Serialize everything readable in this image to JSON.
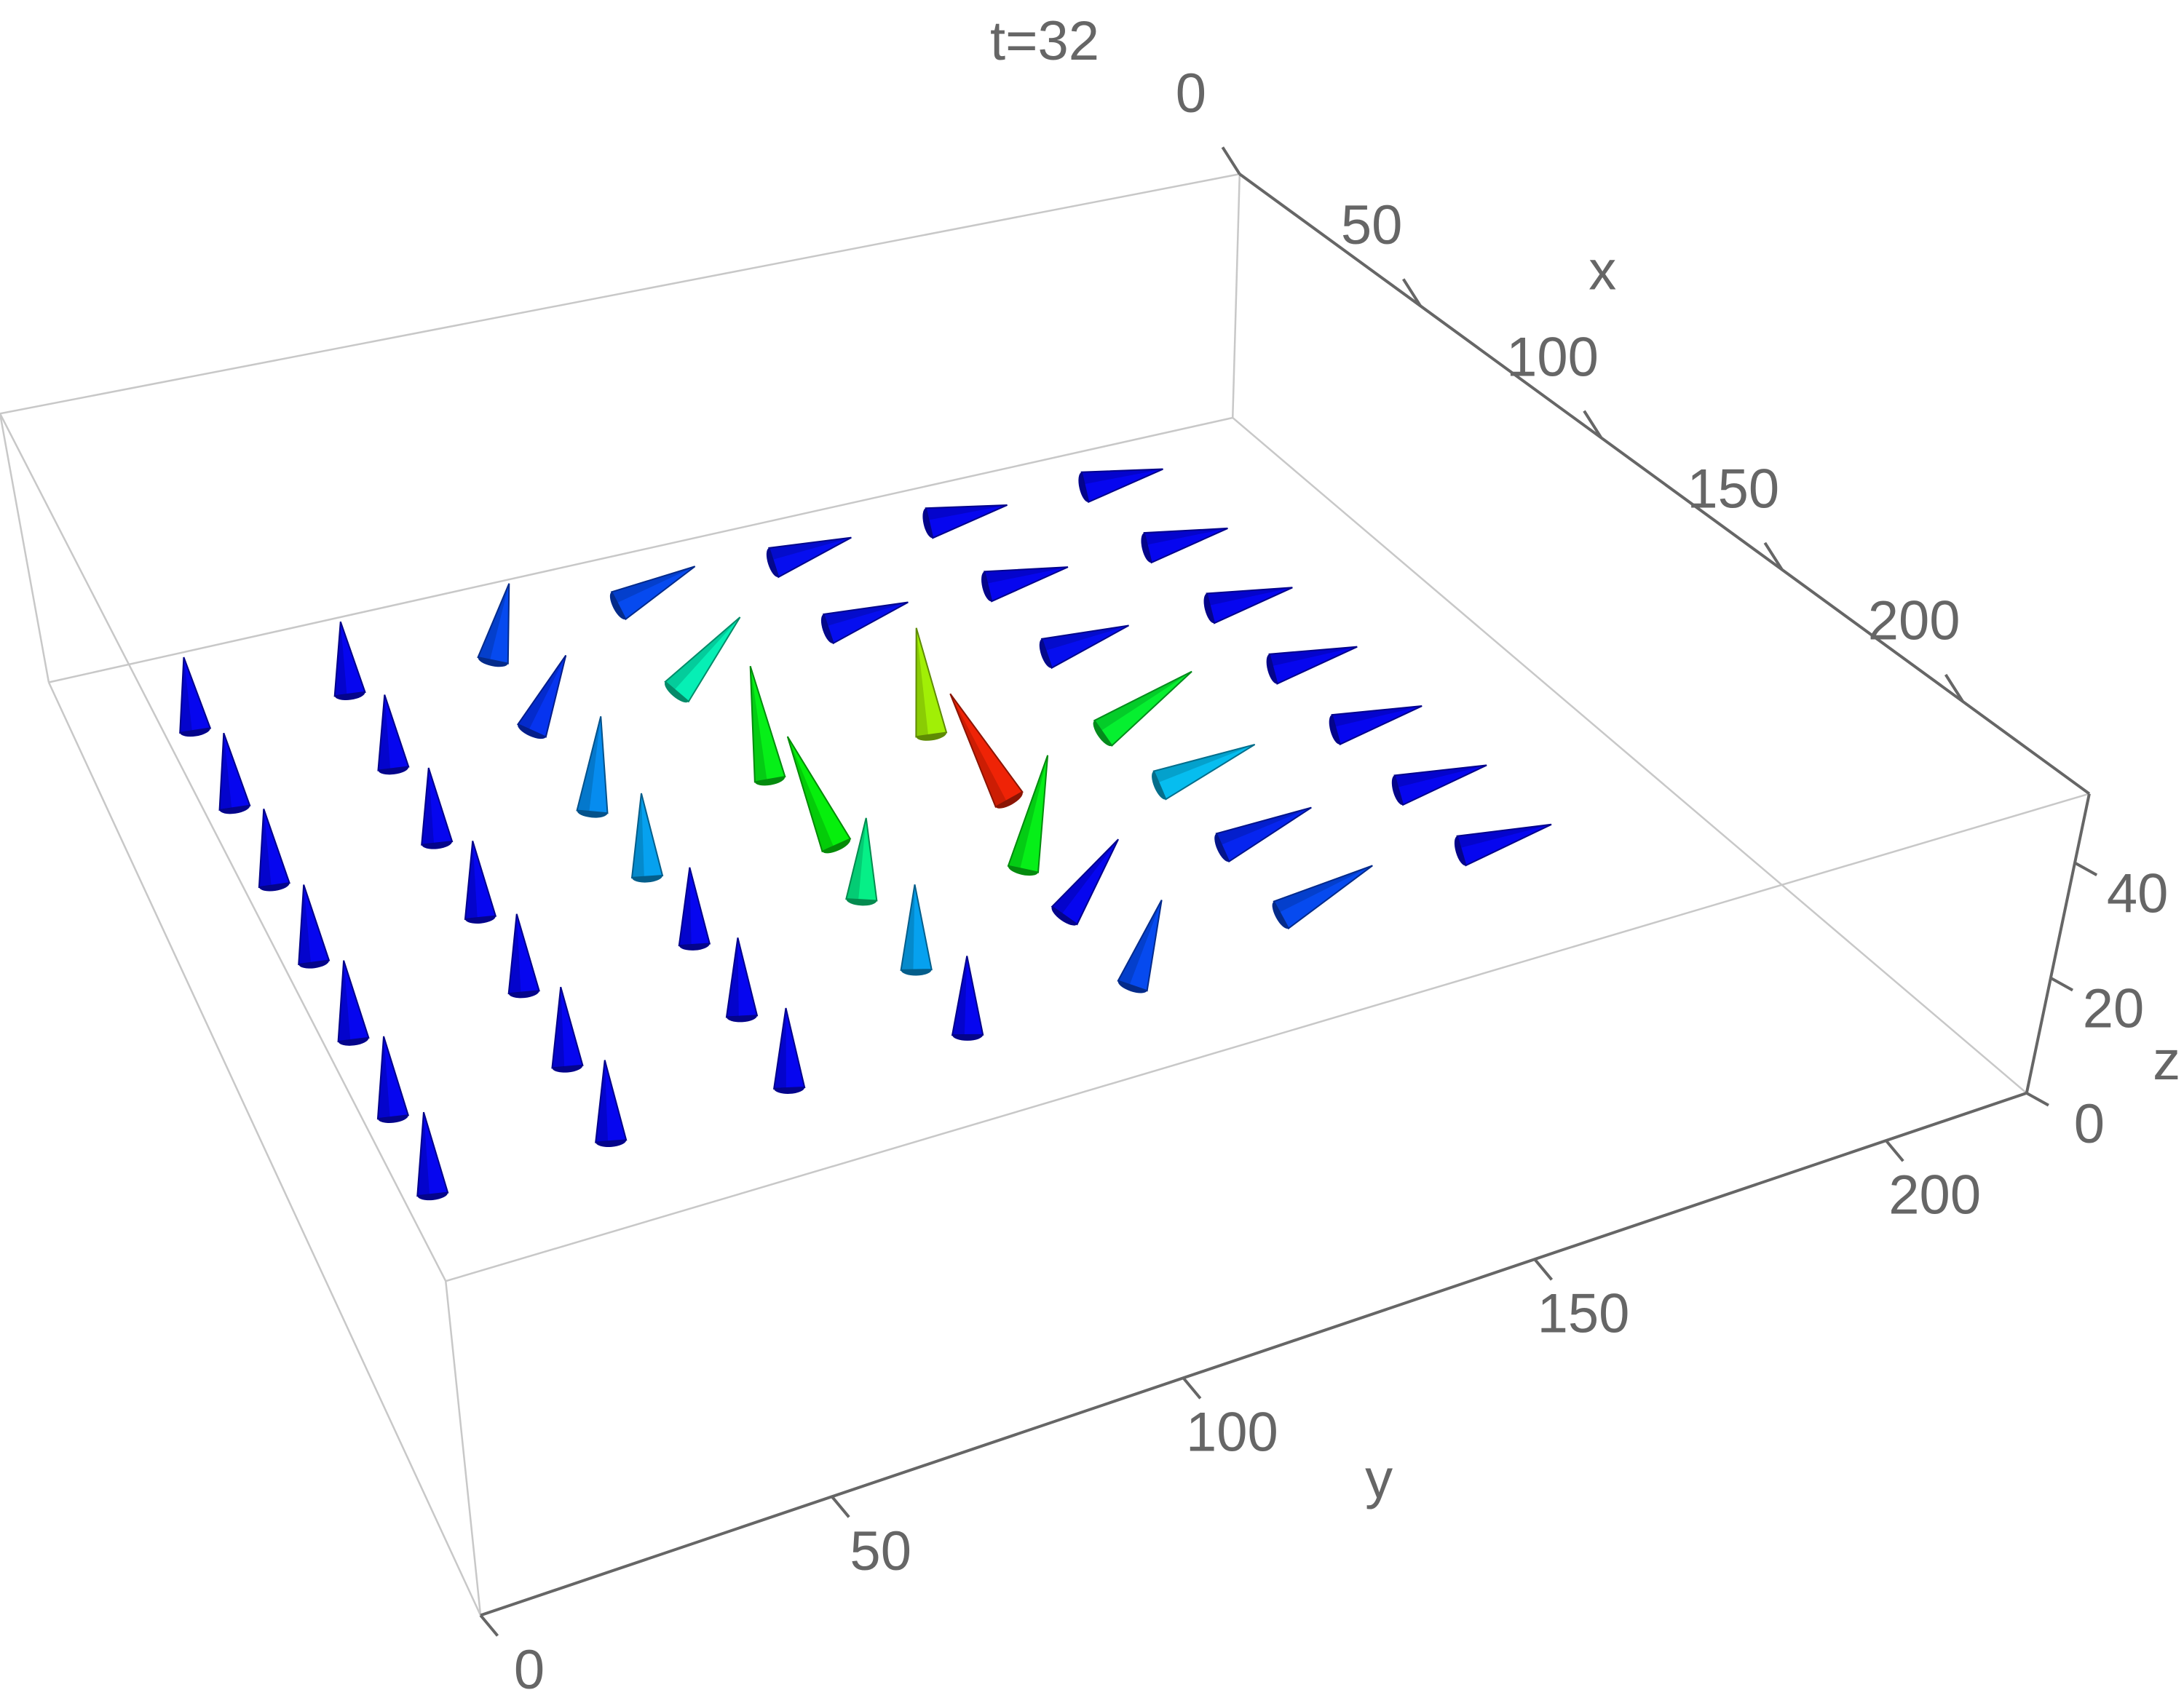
{
  "chart_data": {
    "type": "vector3d",
    "title": "t=32",
    "xlabel": "x",
    "ylabel": "y",
    "zlabel": "z",
    "xlim": [
      0,
      235
    ],
    "ylim": [
      0,
      220
    ],
    "zlim": [
      0,
      52
    ],
    "xticks": [
      0,
      50,
      100,
      150,
      200
    ],
    "yticks": [
      0,
      50,
      100,
      150,
      200
    ],
    "zticks": [
      0,
      20,
      40
    ],
    "x": [
      20,
      20,
      20,
      20,
      20,
      20,
      20,
      40,
      40,
      40,
      40,
      40,
      40,
      40,
      60,
      60,
      60,
      60,
      60,
      60,
      60,
      80,
      80,
      80,
      80,
      80,
      80,
      80,
      100,
      100,
      100,
      100,
      100,
      100,
      100,
      120,
      120,
      120,
      120,
      120,
      120,
      120,
      140,
      140,
      140,
      140,
      140,
      140,
      140
    ],
    "y": [
      20,
      48,
      76,
      104,
      132,
      160,
      188,
      20,
      48,
      76,
      104,
      132,
      160,
      188,
      20,
      48,
      76,
      104,
      132,
      160,
      188,
      20,
      48,
      76,
      104,
      132,
      160,
      188,
      20,
      48,
      76,
      104,
      132,
      160,
      188,
      20,
      48,
      76,
      104,
      132,
      160,
      188,
      20,
      48,
      76,
      104,
      132,
      160,
      188
    ],
    "z": [
      8,
      8,
      8,
      8,
      8,
      8,
      8,
      8,
      8,
      8,
      8,
      8,
      8,
      8,
      8,
      8,
      8,
      8,
      8,
      8,
      8,
      8,
      8,
      8,
      8,
      8,
      8,
      8,
      8,
      8,
      8,
      8,
      8,
      8,
      8,
      8,
      8,
      8,
      8,
      8,
      8,
      8,
      8,
      8,
      8,
      8,
      8,
      8,
      8
    ],
    "u": [
      0,
      0,
      0,
      0,
      0,
      0,
      0,
      0,
      0,
      0,
      -0.4,
      0,
      0,
      0,
      0,
      0,
      -0.3,
      -0.9,
      -1.2,
      0,
      0,
      0,
      0,
      0,
      -0.8,
      -1.5,
      -0.3,
      0,
      0,
      0,
      0,
      0.2,
      -0.7,
      0,
      0,
      0,
      0,
      0,
      0,
      0,
      0,
      0,
      0,
      0,
      0,
      0,
      0,
      0,
      0
    ],
    "v": [
      0,
      0,
      0.3,
      1,
      1,
      1,
      1,
      0,
      0,
      0.5,
      1,
      1,
      1,
      1,
      0,
      0,
      0.3,
      0.2,
      0.4,
      1,
      1,
      0,
      0,
      0,
      -0.2,
      0,
      1.2,
      1,
      0,
      0,
      0,
      0,
      0.6,
      1.1,
      1,
      0,
      0,
      0,
      0,
      0.6,
      1,
      1,
      0,
      0,
      0,
      0,
      0.3,
      1,
      1
    ],
    "w": [
      1,
      1,
      1,
      0.3,
      0.1,
      0,
      0,
      1,
      1,
      0.9,
      0.5,
      0.1,
      0,
      0,
      1,
      1,
      1,
      0.9,
      0.6,
      0.1,
      0,
      1,
      1,
      1.1,
      1,
      0.5,
      0.3,
      0,
      1,
      1,
      1,
      1.2,
      0.9,
      0.2,
      0,
      1,
      1,
      1,
      1.1,
      0.8,
      0.2,
      0,
      1,
      1,
      1,
      1,
      1,
      0.3,
      0
    ]
  }
}
